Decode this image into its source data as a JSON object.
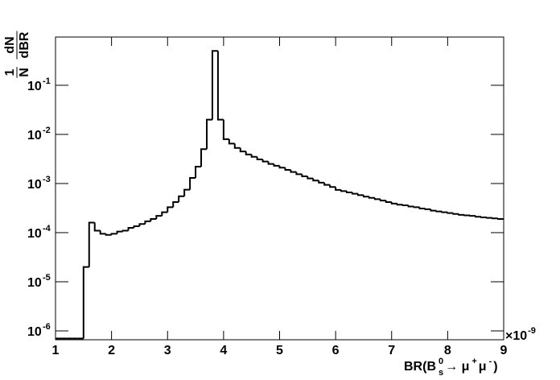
{
  "chart_data": {
    "type": "histogram",
    "color": "#000000",
    "log_y": true,
    "ylim": [
      6.6e-07,
      0.96
    ],
    "xlim": [
      1,
      9
    ],
    "xticks": [
      1,
      2,
      3,
      4,
      5,
      6,
      7,
      8,
      9
    ],
    "yticks": [
      {
        "value": 1e-06,
        "label": "10",
        "sup": "-6"
      },
      {
        "value": 1e-05,
        "label": "10",
        "sup": "-5"
      },
      {
        "value": 0.0001,
        "label": "10",
        "sup": "-4"
      },
      {
        "value": 0.001,
        "label": "10",
        "sup": "-3"
      },
      {
        "value": 0.01,
        "label": "10",
        "sup": "-2"
      },
      {
        "value": 0.1,
        "label": "10",
        "sup": "-1"
      }
    ],
    "x_multiplier": {
      "label": "×10",
      "sup": "-9"
    },
    "x_label": {
      "parts": [
        {
          "text": "BR(B"
        },
        {
          "text": "0",
          "pos": "sup"
        },
        {
          "text": "s",
          "pos": "sub"
        },
        {
          "text": "→ μ"
        },
        {
          "text": "+",
          "pos": "sup"
        },
        {
          "text": "μ"
        },
        {
          "text": "-",
          "pos": "sup"
        },
        {
          "text": ")"
        }
      ]
    },
    "y_label": {
      "numerator": [
        "1",
        "dN"
      ],
      "denominator": [
        "N",
        "dBR"
      ]
    },
    "bins": [
      1.0,
      1.1,
      1.2,
      1.3,
      1.4,
      1.5,
      1.6,
      1.7,
      1.8,
      1.9,
      2.0,
      2.1,
      2.2,
      2.3,
      2.4,
      2.5,
      2.6,
      2.7,
      2.8,
      2.9,
      3.0,
      3.1,
      3.2,
      3.3,
      3.4,
      3.5,
      3.6,
      3.7,
      3.8,
      3.9,
      4.0,
      4.1,
      4.2,
      4.3,
      4.4,
      4.5,
      4.6,
      4.7,
      4.8,
      4.9,
      5.0,
      5.1,
      5.2,
      5.3,
      5.4,
      5.5,
      5.6,
      5.7,
      5.8,
      5.9,
      6.0,
      6.1,
      6.2,
      6.3,
      6.4,
      6.5,
      6.6,
      6.7,
      6.8,
      6.9,
      7.0,
      7.1,
      7.2,
      7.3,
      7.4,
      7.5,
      7.6,
      7.7,
      7.8,
      7.9,
      8.0,
      8.1,
      8.2,
      8.3,
      8.4,
      8.5,
      8.6,
      8.7,
      8.8,
      8.9,
      9.0
    ],
    "values": [
      7e-07,
      7e-07,
      7e-07,
      7e-07,
      7e-07,
      2e-05,
      0.00016,
      0.00011,
      9.5e-05,
      9e-05,
      9.5e-05,
      0.000105,
      0.00011,
      0.000125,
      0.000135,
      0.00015,
      0.00017,
      0.00019,
      0.00022,
      0.00026,
      0.00033,
      0.00042,
      0.00055,
      0.00075,
      0.0013,
      0.0022,
      0.005,
      0.02,
      0.5,
      0.02,
      0.008,
      0.0065,
      0.0053,
      0.0045,
      0.0039,
      0.0035,
      0.0031,
      0.0028,
      0.0025,
      0.0023,
      0.0021,
      0.0019,
      0.00172,
      0.00155,
      0.0014,
      0.00127,
      0.00115,
      0.00104,
      0.00094,
      0.00085,
      0.00074,
      0.0007,
      0.00066,
      0.00062,
      0.00058,
      0.00054,
      0.00051,
      0.00048,
      0.00045,
      0.00042,
      0.00039,
      0.00037,
      0.00036,
      0.00034,
      0.00033,
      0.00031,
      0.0003,
      0.00028,
      0.00027,
      0.00026,
      0.00025,
      0.00024,
      0.00023,
      0.000225,
      0.00022,
      0.00021,
      0.000205,
      0.0002,
      0.000195,
      0.00019
    ]
  }
}
